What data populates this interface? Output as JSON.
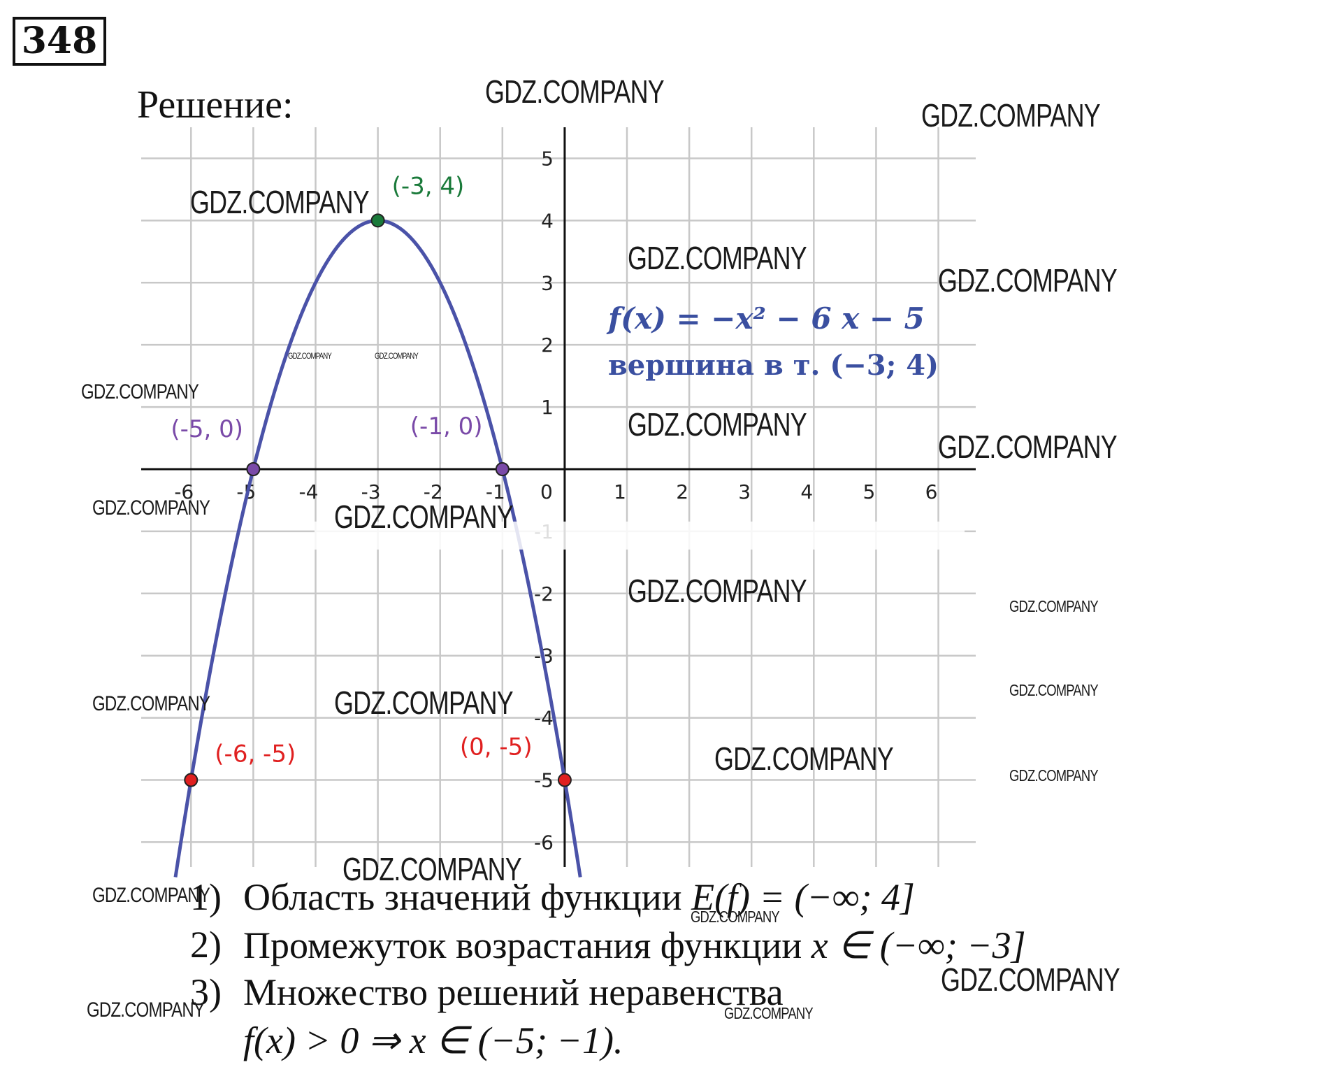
{
  "problem_number": "348",
  "heading": "Решение:",
  "chart_data": {
    "type": "line",
    "function_label": "f(x) = −x² − 6 x − 5",
    "vertex_label": "вершина в т. (−3; 4)",
    "xlim": [
      -6.8,
      6.6
    ],
    "ylim": [
      -6.4,
      5.5
    ],
    "grid": true,
    "x_ticks": [
      -6,
      -5,
      -4,
      -3,
      -2,
      -1,
      1,
      2,
      3,
      4,
      5,
      6
    ],
    "y_ticks": [
      -6,
      -5,
      -4,
      -3,
      -2,
      -1,
      1,
      2,
      3,
      4,
      5
    ],
    "origin_label": "0",
    "series": [
      {
        "expression": "-x^2-6x-5",
        "color": "#4a52a8",
        "x_range": [
          -6.25,
          0.25
        ]
      }
    ],
    "points": [
      {
        "x": -3,
        "y": 4,
        "label": "(-3, 4)",
        "color": "#1a7a3a"
      },
      {
        "x": -5,
        "y": 0,
        "label": "(-5, 0)",
        "color": "#7a4aa8"
      },
      {
        "x": -1,
        "y": 0,
        "label": "(-1, 0)",
        "color": "#7a4aa8"
      },
      {
        "x": -6,
        "y": -5,
        "label": "(-6, -5)",
        "color": "#e02020"
      },
      {
        "x": 0,
        "y": -5,
        "label": "(0, -5)",
        "color": "#e02020"
      }
    ]
  },
  "answers": [
    {
      "num": "1)",
      "text": "Область значений функции ",
      "math": "E(f) = (−∞; 4]"
    },
    {
      "num": "2)",
      "text": "Промежуток возрастания функции ",
      "math": "x ∈ (−∞; −3]"
    },
    {
      "num": "3)",
      "text": "Множество решений неравенства",
      "math": ""
    },
    {
      "num": "",
      "text": "",
      "math": "f(x) > 0 ⇒ x ∈ (−5; −1)."
    }
  ],
  "watermark": "GDZ.COMPANY",
  "colors": {
    "curve": "#4a52a8",
    "vertex": "#1a7a3a",
    "roots": "#7a4aa8",
    "intercepts": "#e02020",
    "formula": "#3a4fa0",
    "grid": "#c8c8c8"
  }
}
